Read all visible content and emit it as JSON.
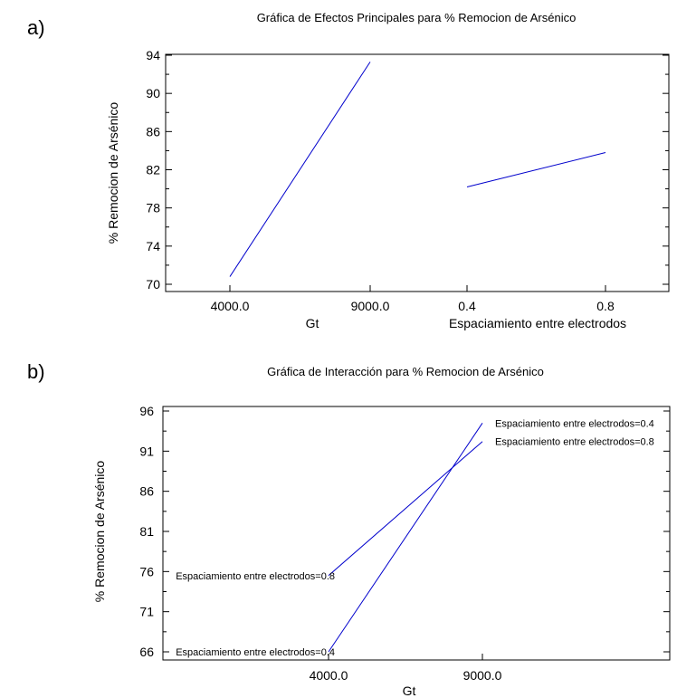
{
  "chart_data": [
    {
      "type": "line",
      "panel_label": "a)",
      "title": "Gráfica de Efectos Principales para % Remocion de Arsénico",
      "ylabel": "% Remocion de Arsénico",
      "ylim": [
        69,
        95
      ],
      "yticks": [
        "70",
        "74",
        "78",
        "82",
        "86",
        "90",
        "94"
      ],
      "factors": [
        {
          "name": "Gt",
          "levels": [
            "4000.0",
            "9000.0"
          ],
          "values": [
            70.8,
            93.3
          ]
        },
        {
          "name": "Espaciamiento entre electrodos",
          "levels": [
            "0.4",
            "0.8"
          ],
          "values": [
            80.2,
            83.8
          ]
        }
      ],
      "line_color": "#0000cc"
    },
    {
      "type": "line",
      "panel_label": "b)",
      "title": "Gráfica de Interacción para % Remocion de Arsénico",
      "xlabel": "Gt",
      "ylabel": "% Remocion de Arsénico",
      "ylim": [
        65,
        97
      ],
      "yticks": [
        "66",
        "71",
        "76",
        "81",
        "86",
        "91",
        "96"
      ],
      "categories": [
        "4000.0",
        "9000.0"
      ],
      "series": [
        {
          "name": "Espaciamiento entre electrodos=0.4",
          "values": [
            66.0,
            94.5
          ]
        },
        {
          "name": "Espaciamiento entre electrodos=0.8",
          "values": [
            75.5,
            92.2
          ]
        }
      ],
      "line_color": "#0000cc"
    }
  ]
}
